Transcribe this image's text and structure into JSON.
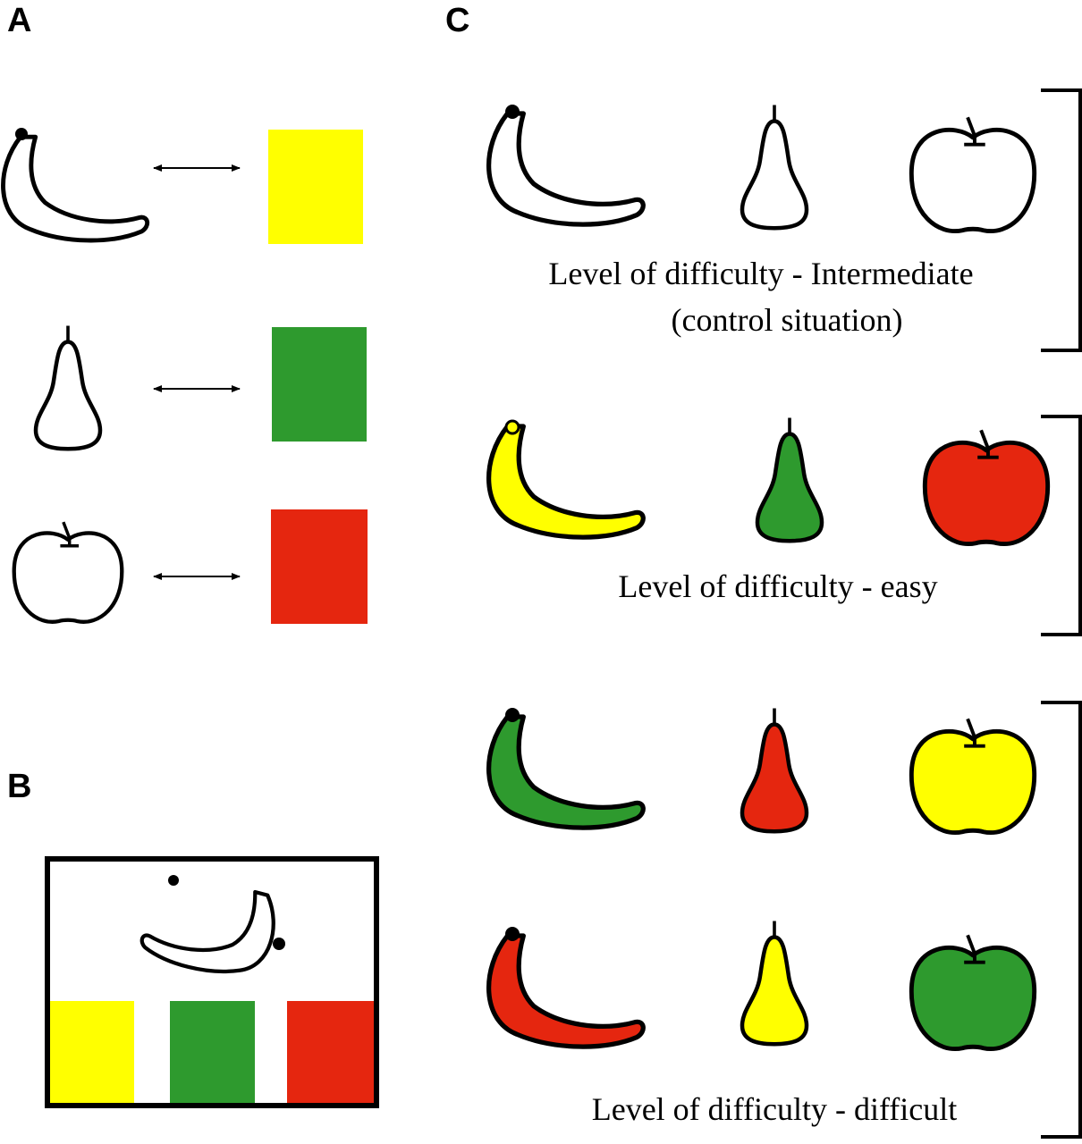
{
  "panels": {
    "a": {
      "label": "A"
    },
    "b": {
      "label": "B"
    },
    "c": {
      "label": "C"
    }
  },
  "colors": {
    "yellow": "#ffff00",
    "green": "#2e9a2e",
    "red": "#e5260f",
    "outline": "#000000",
    "blank": "#ffffff"
  },
  "panel_a": {
    "pairs": [
      {
        "fruit": "banana",
        "color": "yellow"
      },
      {
        "fruit": "pear",
        "color": "green"
      },
      {
        "fruit": "apple",
        "color": "red"
      }
    ]
  },
  "panel_b": {
    "stimulus": "banana",
    "choices": [
      "yellow",
      "green",
      "red"
    ]
  },
  "panel_c": {
    "intermediate": {
      "caption_line1": "Level of difficulty - Intermediate",
      "caption_line2": "(control situation)",
      "fills": {
        "banana": "blank",
        "pear": "blank",
        "apple": "blank"
      }
    },
    "easy": {
      "caption": "Level of difficulty - easy",
      "fills": {
        "banana": "yellow",
        "pear": "green",
        "apple": "red"
      }
    },
    "difficult": {
      "caption": "Level of difficulty - difficult",
      "rows": [
        {
          "banana": "green",
          "pear": "red",
          "apple": "yellow"
        },
        {
          "banana": "red",
          "pear": "yellow",
          "apple": "green"
        }
      ]
    }
  }
}
